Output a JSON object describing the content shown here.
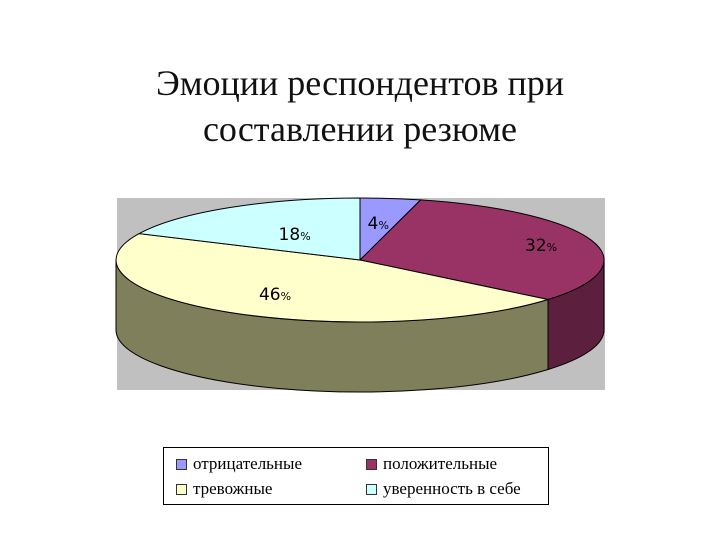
{
  "title_line1": "Эмоции респондентов при",
  "title_line2": "составлении резюме",
  "chart_data": {
    "type": "pie",
    "title": "Эмоции респондентов при составлении резюме",
    "categories": [
      "отрицательные",
      "положительные",
      "тревожные",
      "уверенность в себе"
    ],
    "values": [
      4,
      32,
      46,
      18
    ],
    "data_labels": [
      "4%",
      "32%",
      "46%",
      "18%"
    ],
    "colors": [
      "#9999ff",
      "#993366",
      "#ffffcc",
      "#ccffff"
    ],
    "side_colors": [
      "#5c5c99",
      "#5c1f3d",
      "#7f7f5c",
      "#6b8080"
    ],
    "legend_placement": "bottom"
  }
}
